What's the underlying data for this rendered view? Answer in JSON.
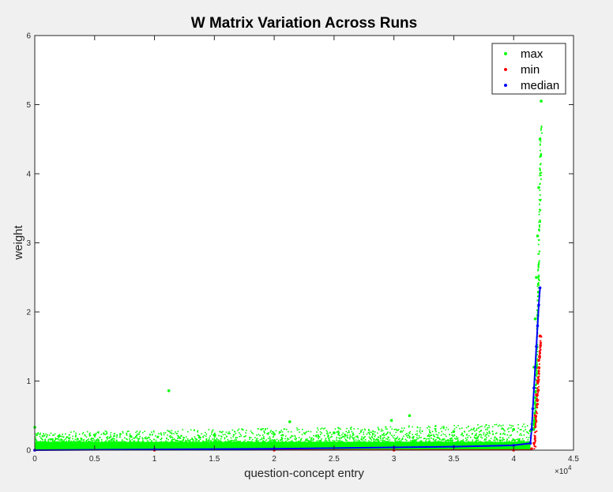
{
  "chart_data": {
    "type": "scatter",
    "title": "W Matrix Variation Across Runs",
    "xlabel": "question-concept entry",
    "ylabel": "weight",
    "x_exponent_label": "×10",
    "x_exponent_power": "4",
    "xlim": [
      0,
      45000
    ],
    "ylim": [
      0,
      6
    ],
    "x_ticks": [
      0,
      5000,
      10000,
      15000,
      20000,
      25000,
      30000,
      35000,
      40000,
      45000
    ],
    "x_tick_labels": [
      "0",
      "0.5",
      "1",
      "1.5",
      "2",
      "2.5",
      "3",
      "3.5",
      "4",
      "4.5"
    ],
    "y_ticks": [
      0,
      1,
      2,
      3,
      4,
      5,
      6
    ],
    "y_tick_labels": [
      "0",
      "1",
      "2",
      "3",
      "4",
      "5",
      "6"
    ],
    "grid": false,
    "legend_position": "top-right",
    "series": [
      {
        "name": "max",
        "color": "#00ff00",
        "points": [
          [
            0,
            0.33
          ],
          [
            2000,
            0.2
          ],
          [
            5000,
            0.22
          ],
          [
            8000,
            0.2
          ],
          [
            11200,
            0.86
          ],
          [
            15000,
            0.22
          ],
          [
            20000,
            0.23
          ],
          [
            21300,
            0.41
          ],
          [
            25000,
            0.25
          ],
          [
            29800,
            0.43
          ],
          [
            31300,
            0.5
          ],
          [
            35000,
            0.27
          ],
          [
            40000,
            0.3
          ],
          [
            41400,
            0.28
          ],
          [
            41600,
            0.6
          ],
          [
            41700,
            1.2
          ],
          [
            41800,
            1.9
          ],
          [
            41900,
            2.5
          ],
          [
            42000,
            3.1
          ],
          [
            42100,
            3.8
          ],
          [
            42200,
            4.5
          ],
          [
            42300,
            5.05
          ]
        ]
      },
      {
        "name": "min",
        "color": "#ff0000",
        "points": [
          [
            0,
            0.0
          ],
          [
            10000,
            0.0
          ],
          [
            20000,
            0.0
          ],
          [
            30000,
            0.0
          ],
          [
            40000,
            0.0
          ],
          [
            41500,
            0.02
          ],
          [
            41700,
            0.1
          ],
          [
            41800,
            0.5
          ],
          [
            41900,
            0.8
          ],
          [
            42000,
            1.0
          ],
          [
            42100,
            1.3
          ],
          [
            42200,
            1.65
          ]
        ]
      },
      {
        "name": "median",
        "color": "#0000ff",
        "points": [
          [
            0,
            0.0
          ],
          [
            10000,
            0.01
          ],
          [
            20000,
            0.02
          ],
          [
            30000,
            0.04
          ],
          [
            35000,
            0.05
          ],
          [
            40000,
            0.07
          ],
          [
            41400,
            0.1
          ],
          [
            41500,
            0.3
          ],
          [
            41600,
            0.6
          ],
          [
            41700,
            0.9
          ],
          [
            41800,
            1.2
          ],
          [
            41900,
            1.5
          ],
          [
            42000,
            1.8
          ],
          [
            42100,
            2.1
          ],
          [
            42200,
            2.35
          ]
        ]
      }
    ]
  }
}
